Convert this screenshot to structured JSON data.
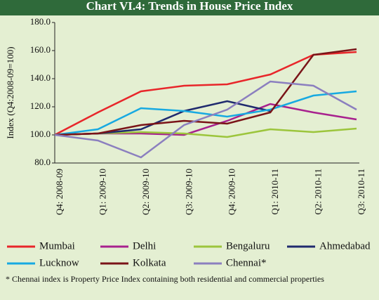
{
  "chart_data": {
    "type": "line",
    "title": "Chart VI.4: Trends in House Price Index",
    "y_label": "Index (Q4:2008-09=100)",
    "categories": [
      "Q4: 2008-09",
      "Q1: 2009-10",
      "Q2: 2009-10",
      "Q3: 2009-10",
      "Q4: 2009-10",
      "Q1: 2010-11",
      "Q2: 2010-11",
      "Q3: 2010-11"
    ],
    "series": [
      {
        "name": "Mumbai",
        "color": "#e8262a",
        "values": [
          100,
          116,
          131,
          135,
          136,
          143,
          157,
          159
        ]
      },
      {
        "name": "Delhi",
        "color": "#a8218e",
        "values": [
          100,
          101,
          101,
          100,
          110,
          122,
          116,
          111
        ]
      },
      {
        "name": "Bengaluru",
        "color": "#9cc53c",
        "values": [
          100,
          101,
          102,
          101,
          98.5,
          104,
          102,
          104.5
        ]
      },
      {
        "name": "Ahmedabad",
        "color": "#1f2a6e",
        "values": [
          100,
          101,
          104,
          117,
          124,
          117,
          null,
          null
        ]
      },
      {
        "name": "Lucknow",
        "color": "#17a9e1",
        "values": [
          100,
          104,
          119,
          117,
          113,
          118,
          128,
          131
        ]
      },
      {
        "name": "Kolkata",
        "color": "#7a1418",
        "values": [
          100,
          101,
          107,
          110,
          108,
          116,
          157,
          161
        ]
      },
      {
        "name": "Chennai*",
        "color": "#8b7fbf",
        "values": [
          100,
          96,
          84,
          107,
          118,
          138,
          135,
          118
        ]
      }
    ],
    "ylim": [
      80,
      180
    ],
    "yticks": [
      {
        "value": 80,
        "label": "80.0"
      },
      {
        "value": 100,
        "label": "100.0"
      },
      {
        "value": 120,
        "label": "120.0"
      },
      {
        "value": 140,
        "label": "140.0"
      },
      {
        "value": 160,
        "label": "160.0"
      },
      {
        "value": 180,
        "label": "180.0"
      }
    ],
    "grid": false,
    "legend": "bottom",
    "footnote": "* Chennai index is Property Price Index containing both residential and commercial properties"
  }
}
